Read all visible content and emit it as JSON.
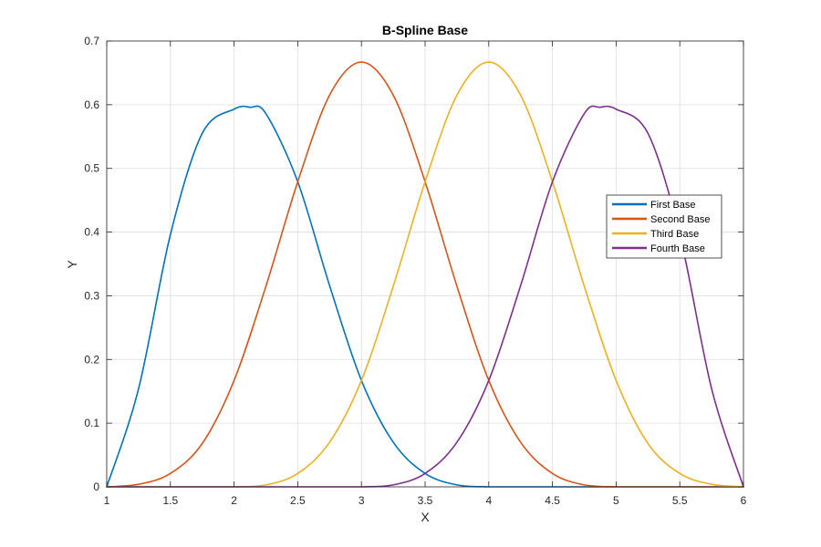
{
  "chart_data": {
    "type": "line",
    "title": "B-Spline Base",
    "xlabel": "X",
    "ylabel": "Y",
    "xlim": [
      1,
      6
    ],
    "ylim": [
      0,
      0.7
    ],
    "xticks": [
      "1",
      "1.5",
      "2",
      "2.5",
      "3",
      "3.5",
      "4",
      "4.5",
      "5",
      "5.5",
      "6"
    ],
    "yticks": [
      "0",
      "0.1",
      "0.2",
      "0.3",
      "0.4",
      "0.5",
      "0.6",
      "0.7"
    ],
    "grid": true,
    "legend_position": "right",
    "series": [
      {
        "name": "First Base",
        "color": "#0072BD",
        "x": [
          1,
          1.25,
          1.5,
          1.75,
          2,
          2.125,
          2.25,
          2.5,
          2.75,
          3,
          3.25,
          3.5,
          3.75,
          4,
          4.5,
          5,
          5.5,
          6
        ],
        "y": [
          0,
          0.154,
          0.396,
          0.555,
          0.593,
          0.596,
          0.586,
          0.479,
          0.316,
          0.167,
          0.07,
          0.021,
          0.003,
          0,
          0,
          0,
          0,
          0
        ]
      },
      {
        "name": "Second Base",
        "color": "#D95319",
        "x": [
          1,
          1.25,
          1.5,
          1.75,
          2,
          2.25,
          2.5,
          2.75,
          3,
          3.25,
          3.5,
          3.75,
          4,
          4.25,
          4.5,
          4.75,
          5,
          5.25,
          5.5,
          6
        ],
        "y": [
          0,
          0.004,
          0.021,
          0.068,
          0.167,
          0.315,
          0.479,
          0.615,
          0.667,
          0.615,
          0.479,
          0.315,
          0.167,
          0.07,
          0.021,
          0.003,
          0,
          0,
          0,
          0
        ]
      },
      {
        "name": "Third Base",
        "color": "#EDB120",
        "x": [
          1,
          1.5,
          2,
          2.25,
          2.5,
          2.75,
          3,
          3.25,
          3.5,
          3.75,
          4,
          4.25,
          4.5,
          4.75,
          5,
          5.25,
          5.5,
          5.75,
          6
        ],
        "y": [
          0,
          0,
          0,
          0.003,
          0.021,
          0.07,
          0.167,
          0.315,
          0.479,
          0.615,
          0.667,
          0.615,
          0.479,
          0.315,
          0.167,
          0.068,
          0.021,
          0.004,
          0
        ]
      },
      {
        "name": "Fourth Base",
        "color": "#7E2F8E",
        "x": [
          1,
          2,
          2.5,
          3,
          3.25,
          3.5,
          3.75,
          4,
          4.25,
          4.5,
          4.75,
          4.875,
          5,
          5.25,
          5.5,
          5.75,
          6
        ],
        "y": [
          0,
          0,
          0,
          0,
          0.003,
          0.021,
          0.07,
          0.167,
          0.316,
          0.479,
          0.586,
          0.596,
          0.593,
          0.555,
          0.396,
          0.154,
          0
        ]
      }
    ]
  }
}
